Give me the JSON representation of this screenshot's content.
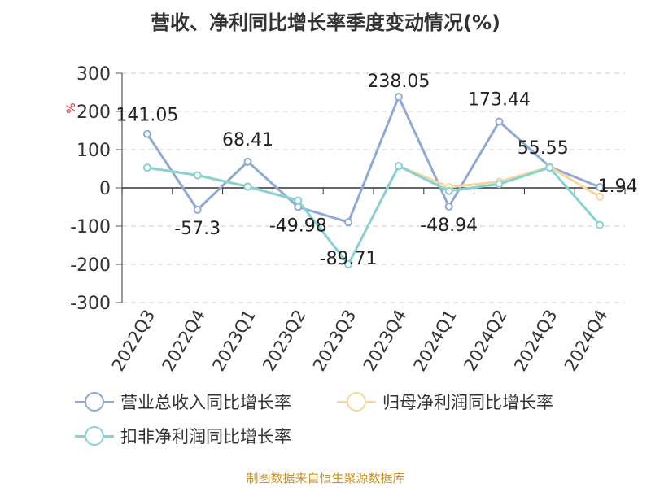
{
  "title": "营收、净利同比增长率季度变动情况(%)",
  "source": "制图数据来自恒生聚源数据库",
  "chart_data": {
    "type": "line",
    "title": "营收、净利同比增长率季度变动情况(%)",
    "ylabel": "%",
    "xlabel": "",
    "ylim": [
      -300,
      300
    ],
    "yticks": [
      -300,
      -200,
      -100,
      0,
      100,
      200,
      300
    ],
    "grid": true,
    "legend_position": "bottom",
    "categories": [
      "2022Q3",
      "2022Q4",
      "2023Q1",
      "2023Q2",
      "2023Q3",
      "2023Q4",
      "2024Q1",
      "2024Q2",
      "2024Q3",
      "2024Q4"
    ],
    "series": [
      {
        "name": "营业总收入同比增长率",
        "color": "#8fa9d4",
        "values": [
          141.05,
          -57.3,
          68.41,
          -49.98,
          -89.71,
          238.05,
          -48.94,
          173.44,
          55.55,
          1.94
        ],
        "data_labels": [
          "141.05",
          "-57.3",
          "68.41",
          "-49.98",
          "-89.71",
          "238.05",
          "-48.94",
          "173.44",
          "55.55",
          "1.94"
        ]
      },
      {
        "name": "归母净利润同比增长率",
        "color": "#f5d79e",
        "values": [
          53,
          33,
          4,
          -33,
          -200,
          58,
          2,
          16,
          55,
          -23
        ]
      },
      {
        "name": "扣非净利润同比增长率",
        "color": "#86d3d3",
        "values": [
          53,
          33,
          3,
          -33,
          -200,
          57,
          -8,
          10,
          53,
          -97
        ]
      }
    ]
  }
}
